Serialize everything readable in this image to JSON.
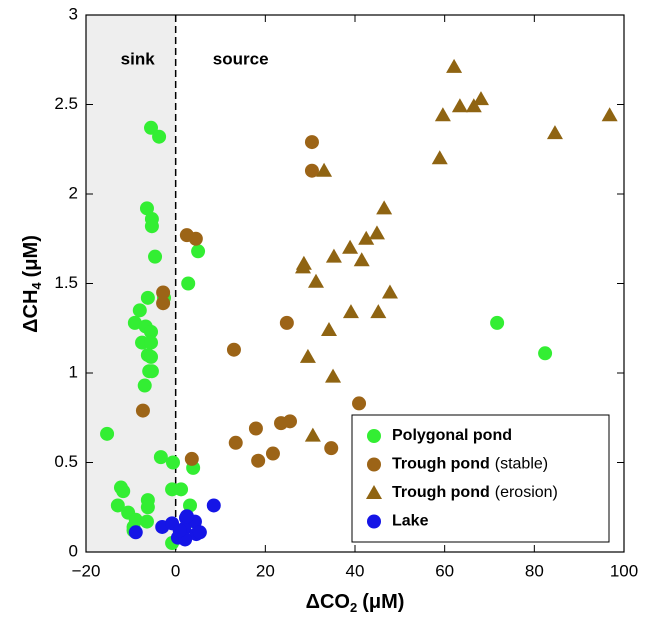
{
  "chart_data": {
    "type": "scatter",
    "x_label": {
      "main": "ΔCO",
      "sub": "2",
      "unit": "(μM)"
    },
    "y_label": {
      "main": "ΔCH",
      "sub": "4",
      "unit": "(μM)"
    },
    "annotations": {
      "left": "sink",
      "right": "source"
    },
    "xlim": [
      -20,
      100
    ],
    "ylim": [
      0,
      3
    ],
    "xticks": [
      {
        "value": -20,
        "label": "−20"
      },
      0,
      20,
      40,
      60,
      80,
      100
    ],
    "yticks": [
      0,
      0.5,
      1,
      1.5,
      2,
      2.5,
      3
    ],
    "shaded_xrange": [
      -20,
      0
    ],
    "divider_x": 0,
    "legend_position": "lower right",
    "series": [
      {
        "name": "Polygonal pond",
        "color": "#33ee33",
        "marker": "circle",
        "x": [
          -15.3,
          -5.5,
          -3.7,
          -6.4,
          -5.3,
          -5.3,
          -4.6,
          5.0,
          2.8,
          -2.6,
          -6.2,
          -8.0,
          -9.1,
          -6.7,
          -5.5,
          -7.5,
          -5.5,
          -6.2,
          -5.5,
          -5.9,
          -5.3,
          -6.9,
          71.7,
          82.4,
          -3.3,
          -0.6,
          3.9,
          -12.2,
          -11.7,
          -12.9,
          -10.6,
          -6.2,
          -6.2,
          -8.9,
          -9.4,
          -9.4,
          -6.4,
          -0.8,
          1.2,
          3.2,
          2.9,
          -0.8
        ],
        "y": [
          0.66,
          2.37,
          2.32,
          1.92,
          1.86,
          1.82,
          1.65,
          1.68,
          1.5,
          1.42,
          1.42,
          1.35,
          1.28,
          1.26,
          1.23,
          1.17,
          1.17,
          1.1,
          1.09,
          1.01,
          1.01,
          0.93,
          1.28,
          1.11,
          0.53,
          0.5,
          0.47,
          0.36,
          0.34,
          0.26,
          0.22,
          0.29,
          0.25,
          0.18,
          0.14,
          0.12,
          0.17,
          0.35,
          0.35,
          0.26,
          0.17,
          0.05
        ]
      },
      {
        "name": "Trough pond",
        "suffix": "(stable)",
        "color": "#9c6417",
        "marker": "circle",
        "x": [
          30.4,
          30.4,
          2.5,
          4.5,
          -2.8,
          -2.8,
          24.8,
          13.0,
          -7.3,
          40.9,
          17.9,
          13.4,
          23.5,
          25.5,
          21.7,
          18.4,
          34.7,
          3.6
        ],
        "y": [
          2.29,
          2.13,
          1.77,
          1.75,
          1.45,
          1.39,
          1.28,
          1.13,
          0.79,
          0.83,
          0.69,
          0.61,
          0.72,
          0.73,
          0.55,
          0.51,
          0.58,
          0.52
        ]
      },
      {
        "name": "Trough pond",
        "suffix": "(erosion)",
        "color": "#8f6412",
        "marker": "triangle",
        "x": [
          62.1,
          96.8,
          84.6,
          59.6,
          63.4,
          66.5,
          68.1,
          58.9,
          33.1,
          46.5,
          44.9,
          42.5,
          38.9,
          41.5,
          35.3,
          28.6,
          28.4,
          31.3,
          47.8,
          34.2,
          39.1,
          45.2,
          29.5,
          35.1,
          30.6
        ],
        "y": [
          2.71,
          2.44,
          2.34,
          2.44,
          2.49,
          2.49,
          2.53,
          2.2,
          2.13,
          1.92,
          1.78,
          1.75,
          1.7,
          1.63,
          1.65,
          1.61,
          1.59,
          1.51,
          1.45,
          1.24,
          1.34,
          1.34,
          1.09,
          0.98,
          0.65
        ]
      },
      {
        "name": "Lake",
        "color": "#1515e6",
        "marker": "circle",
        "x": [
          8.5,
          -8.9,
          -3.0,
          -0.8,
          2.3,
          4.3,
          1.9,
          4.6,
          5.4,
          0.5,
          2.1,
          2.5,
          0.9
        ],
        "y": [
          0.26,
          0.11,
          0.14,
          0.16,
          0.19,
          0.17,
          0.13,
          0.1,
          0.11,
          0.08,
          0.07,
          0.2,
          0.12
        ]
      }
    ]
  }
}
